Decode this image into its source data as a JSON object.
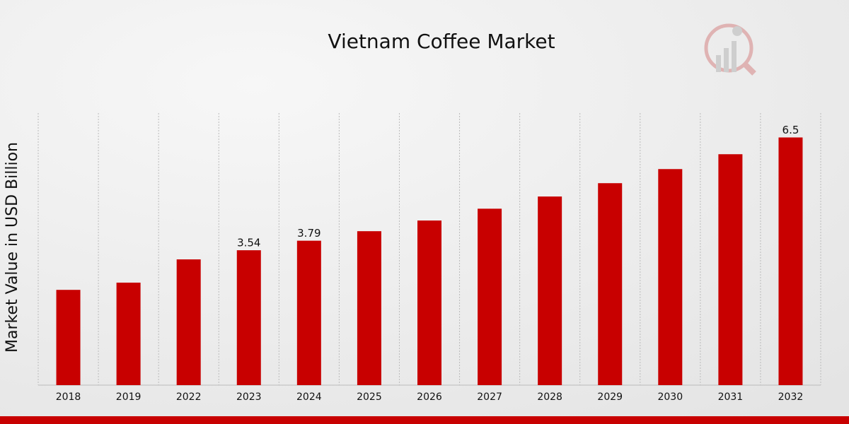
{
  "chart_data": {
    "type": "bar",
    "title": "Vietnam Coffee Market",
    "y_label": "Market Value in USD Billion",
    "categories": [
      "2018",
      "2019",
      "2022",
      "2023",
      "2024",
      "2025",
      "2026",
      "2027",
      "2028",
      "2029",
      "2030",
      "2031",
      "2032"
    ],
    "values": [
      2.5,
      2.69,
      3.3,
      3.54,
      3.79,
      4.04,
      4.32,
      4.63,
      4.95,
      5.3,
      5.67,
      6.06,
      6.5
    ],
    "value_labels": [
      null,
      null,
      null,
      "3.54",
      "3.79",
      null,
      null,
      null,
      null,
      null,
      null,
      null,
      "6.5"
    ],
    "color": "#c80000",
    "ylim": [
      0,
      7.14
    ],
    "grid": true
  }
}
